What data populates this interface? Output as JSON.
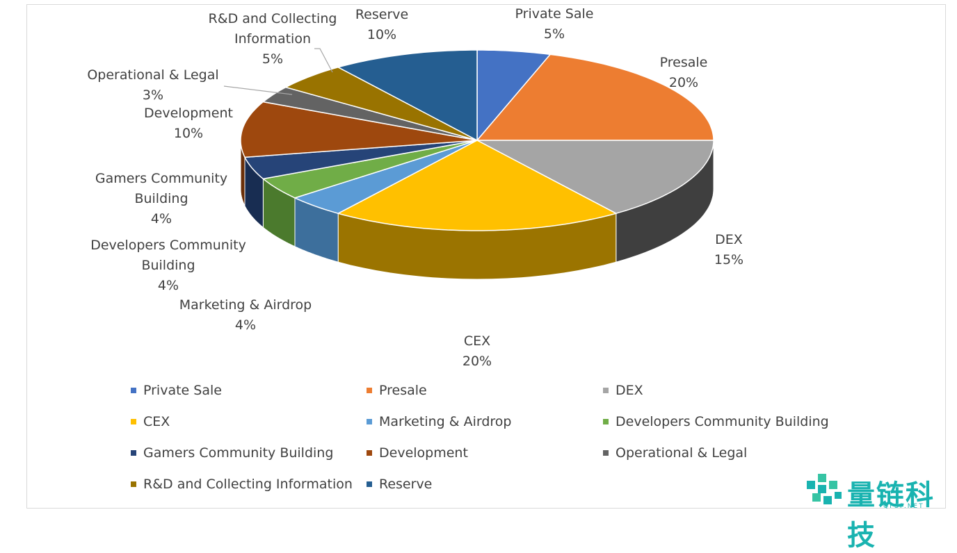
{
  "chart_data": {
    "type": "pie",
    "title": "",
    "slices": [
      {
        "label": "Private Sale",
        "value": 5,
        "pct_label": "5%",
        "color": "#4472c4",
        "side": "#2f4f8a"
      },
      {
        "label": "Presale",
        "value": 20,
        "pct_label": "20%",
        "color": "#ed7d31",
        "side": "#a85620"
      },
      {
        "label": "DEX",
        "value": 15,
        "pct_label": "15%",
        "color": "#a5a5a5",
        "side": "#3f3f3f"
      },
      {
        "label": "CEX",
        "value": 20,
        "pct_label": "20%",
        "color": "#ffc000",
        "side": "#9b7400"
      },
      {
        "label": "Marketing & Airdrop",
        "value": 4,
        "pct_label": "4%",
        "color": "#5b9bd5",
        "side": "#3d6f9c"
      },
      {
        "label": "Developers Community Building",
        "value": 4,
        "pct_label": "4%",
        "color": "#70ad47",
        "side": "#4b7a2d"
      },
      {
        "label": "Gamers Community Building",
        "value": 4,
        "pct_label": "4%",
        "color": "#264478",
        "side": "#182d52"
      },
      {
        "label": "Development",
        "value": 10,
        "pct_label": "10%",
        "color": "#9e480e",
        "side": "#6b2f08"
      },
      {
        "label": "Operational & Legal",
        "value": 3,
        "pct_label": "3%",
        "color": "#636363",
        "side": "#3d3d3d"
      },
      {
        "label": "R&D and Collecting Information",
        "value": 5,
        "pct_label": "5%",
        "color": "#997300",
        "side": "#664c00"
      },
      {
        "label": "Reserve",
        "value": 10,
        "pct_label": "10%",
        "color": "#255e91",
        "side": "#173e61"
      }
    ],
    "legend_position": "bottom"
  },
  "watermark": {
    "text": "量链科技",
    "subtext": "QFSP.NET",
    "color": "#19b3b0"
  }
}
